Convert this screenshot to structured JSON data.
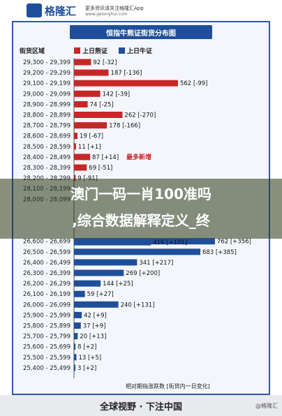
{
  "header": {
    "brand": "格隆汇",
    "tagline": "更多资讯请关注格隆汇App",
    "url": "www.gelonghui.com"
  },
  "chart_data": {
    "type": "bar",
    "title": "恒指牛熊证街货分布图",
    "category_header": "街货区域",
    "series": [
      {
        "name": "上日熊证",
        "color": "#c62828"
      },
      {
        "name": "上日牛证",
        "color": "#1f4f9a"
      }
    ],
    "xlim": [
      0,
      800
    ],
    "rows": [
      {
        "range": "29,300 - 29,399",
        "series": "上日熊证",
        "value": 92,
        "label": "92 [-32]"
      },
      {
        "range": "29,200 - 29,299",
        "series": "上日熊证",
        "value": 187,
        "label": "187 [-136]"
      },
      {
        "range": "29,100 - 29,199",
        "series": "上日熊证",
        "value": 562,
        "label": "562 [-99]"
      },
      {
        "range": "29,000 - 29,099",
        "series": "上日熊证",
        "value": 142,
        "label": "142 [-39]"
      },
      {
        "range": "28,900 - 28,999",
        "series": "上日熊证",
        "value": 74,
        "label": "74 [-25]"
      },
      {
        "range": "28,800 - 28,899",
        "series": "上日熊证",
        "value": 262,
        "label": "262 [-270]"
      },
      {
        "range": "28,700 - 28,799",
        "series": "上日熊证",
        "value": 178,
        "label": "178 [-166]"
      },
      {
        "range": "28,600 - 28,699",
        "series": "上日熊证",
        "value": 19,
        "label": "19 [-67]"
      },
      {
        "range": "28,500 - 28,599",
        "series": "上日熊证",
        "value": 11,
        "label": "11 [+1]"
      },
      {
        "range": "28,400 - 28,499",
        "series": "上日熊证",
        "value": 87,
        "label": "87 [+14]"
      },
      {
        "range": "28,300 - 28,399",
        "series": "上日熊证",
        "value": 69,
        "label": "69 [-51]"
      },
      {
        "range": "28,200 - 28,299",
        "series": "上日熊证",
        "value": 9,
        "label": "9 [-91]"
      },
      {
        "range": "28,100 - 28,199",
        "series": "上日熊证",
        "value": 0,
        "label": ""
      },
      {
        "range": "28,000 - 28,099",
        "series": "上日熊证",
        "value": 0,
        "label": ""
      },
      {
        "range": "",
        "series": "上日熊证",
        "value": 0,
        "label": ""
      },
      {
        "range": "",
        "series": "上日牛证",
        "value": 0,
        "label": ""
      },
      {
        "range": "",
        "series": "上日牛证",
        "value": 0,
        "label": ""
      },
      {
        "range": "26,600 - 26,699",
        "series": "上日牛证",
        "value": 762,
        "label": "762 [+356]"
      },
      {
        "range": "26,500 - 26,599",
        "series": "上日牛证",
        "value": 683,
        "label": "683 [+385]"
      },
      {
        "range": "26,400 - 26,499",
        "series": "上日牛证",
        "value": 341,
        "label": "341 [+217]"
      },
      {
        "range": "26,300 - 26,399",
        "series": "上日牛证",
        "value": 269,
        "label": "269 [+200]"
      },
      {
        "range": "26,200 - 26,299",
        "series": "上日牛证",
        "value": 144,
        "label": "144 [+25]"
      },
      {
        "range": "26,100 - 26,199",
        "series": "上日牛证",
        "value": 59,
        "label": "59 [+27]"
      },
      {
        "range": "26,000 - 26,099",
        "series": "上日牛证",
        "value": 240,
        "label": "240 [+131]"
      },
      {
        "range": "25,900 - 25,999",
        "series": "上日牛证",
        "value": 42,
        "label": "42 [+9]"
      },
      {
        "range": "25,800 - 25,899",
        "series": "上日牛证",
        "value": 37,
        "label": "37 [+9]"
      },
      {
        "range": "25,700 - 25,799",
        "series": "上日牛证",
        "value": 20,
        "label": "20 [+13]"
      },
      {
        "range": "25,600 - 25,699",
        "series": "上日牛证",
        "value": 8,
        "label": "8 [+2]"
      },
      {
        "range": "25,500 - 25,599",
        "series": "上日牛证",
        "value": 13,
        "label": "13 [+5]"
      },
      {
        "range": "25,400 - 25,499",
        "series": "上日牛证",
        "value": 3,
        "label": "3 [+2]"
      }
    ],
    "partial_visible": [
      {
        "range": "",
        "series": "上日牛证",
        "label": "416 [+101]"
      }
    ],
    "annotations": [
      {
        "text": "最多新增",
        "color": "#c62828"
      }
    ],
    "footnote": "相对期指涨跌数 [街货内一日变化]"
  },
  "overlay": {
    "line1": "澳门一码一肖100准吗",
    "line2": ",综合数据解释定义_终"
  },
  "footer": {
    "text": "全球视野 · 下注中国",
    "mark": "@格隆汇"
  }
}
